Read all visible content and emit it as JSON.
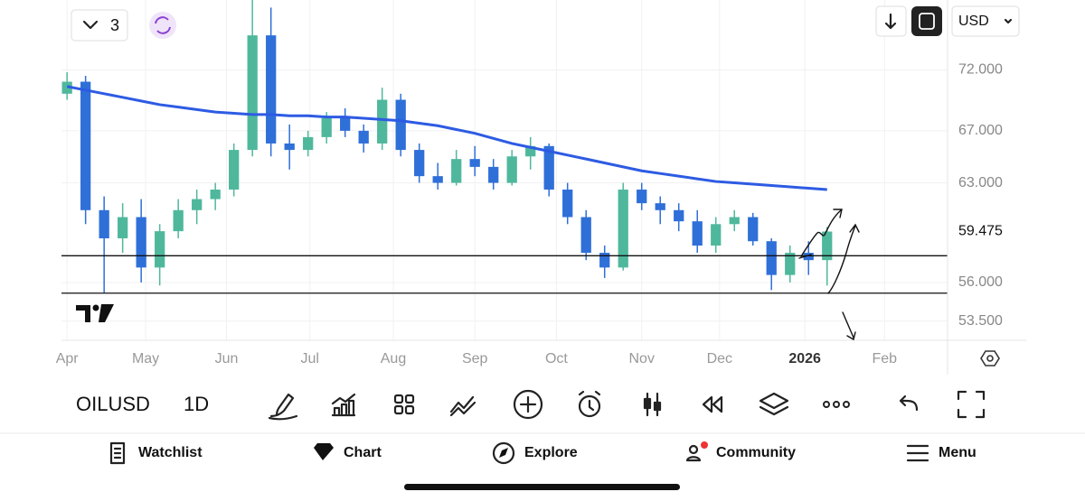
{
  "top_bar": {
    "layout_count": "3",
    "currency": "USD"
  },
  "chart_data": {
    "type": "candlestick",
    "x": [
      0,
      1,
      2,
      3,
      4,
      5,
      6,
      7,
      8,
      9,
      10,
      11,
      12,
      13,
      14,
      15,
      16,
      17,
      18,
      19,
      20,
      21,
      22,
      23,
      24,
      25,
      26,
      27,
      28,
      29,
      30,
      31,
      32,
      33,
      34,
      35,
      36,
      37,
      38,
      39,
      40,
      41
    ],
    "open": [
      70,
      71,
      61,
      59,
      60.5,
      57,
      59.5,
      61,
      61.8,
      62.5,
      65.5,
      75,
      66,
      65.5,
      66.5,
      68,
      67,
      66,
      69.5,
      65.5,
      63.5,
      63,
      64.8,
      64.2,
      63,
      65,
      65.8,
      62.5,
      60.5,
      58,
      57,
      62.5,
      61.5,
      61,
      60.2,
      58.5,
      60,
      60.5,
      58.8,
      56.5,
      58,
      57.5
    ],
    "high": [
      71.8,
      71.5,
      62,
      61.5,
      61.8,
      60,
      61.8,
      62.5,
      63,
      66,
      78.4,
      77.5,
      67.5,
      67,
      68.5,
      68.8,
      67.5,
      70.5,
      70,
      66,
      64.5,
      65.5,
      65.8,
      64.8,
      65.5,
      66.5,
      66,
      63,
      61,
      58.5,
      63,
      63,
      62,
      61.5,
      61,
      60.5,
      61,
      60.8,
      59,
      58.5,
      58.8,
      59.8
    ],
    "low": [
      69.5,
      60,
      55.3,
      58,
      56,
      55.8,
      59,
      60,
      61,
      62,
      65,
      65,
      64,
      65,
      66,
      66.5,
      65.3,
      65.5,
      65,
      63,
      62.5,
      62.8,
      63.5,
      62.5,
      62.8,
      64,
      62,
      60,
      57.5,
      56.3,
      56.8,
      61,
      60,
      59.5,
      58,
      58,
      59.5,
      58.5,
      55.5,
      56,
      56.5,
      55.8
    ],
    "close": [
      71,
      61,
      59,
      60.5,
      57,
      59.5,
      61,
      61.8,
      62.5,
      65.5,
      75,
      66,
      65.5,
      66.5,
      68,
      67,
      66,
      69.5,
      65.5,
      63.5,
      63,
      64.8,
      64.2,
      63,
      65,
      65.8,
      62.5,
      60.5,
      58,
      57,
      62.5,
      61.5,
      61,
      60.2,
      58.5,
      60,
      60.5,
      58.8,
      56.5,
      58,
      57.5,
      59.475
    ],
    "up_color": "#4fb89c",
    "down_color": "#2f6fd8",
    "moving_average": {
      "color": "#2d5be3",
      "values": [
        70.6,
        70.3,
        70.0,
        69.7,
        69.4,
        69.1,
        68.9,
        68.7,
        68.5,
        68.4,
        68.3,
        68.3,
        68.2,
        68.2,
        68.1,
        68.1,
        68.0,
        67.9,
        67.8,
        67.6,
        67.4,
        67.1,
        66.8,
        66.4,
        66.0,
        65.7,
        65.4,
        65.1,
        64.8,
        64.5,
        64.2,
        63.9,
        63.7,
        63.5,
        63.3,
        63.1,
        63.0,
        62.9,
        62.8,
        62.7,
        62.6,
        62.5
      ]
    },
    "horizontal_lines": [
      57.8,
      55.3
    ],
    "ylim": [
      52.3,
      78.2
    ],
    "log_scale": true,
    "yticks": [
      {
        "value": 72,
        "label": "72.000"
      },
      {
        "value": 67,
        "label": "67.000"
      },
      {
        "value": 63,
        "label": "63.000"
      },
      {
        "value": 56,
        "label": "56.000"
      },
      {
        "value": 53.5,
        "label": "53.500"
      }
    ],
    "xlim": [
      -0.3,
      47.5
    ],
    "xticks": [
      {
        "value": 0,
        "label": "Apr"
      },
      {
        "value": 4.24,
        "label": "May"
      },
      {
        "value": 8.6,
        "label": "Jun"
      },
      {
        "value": 13.1,
        "label": "Jul"
      },
      {
        "value": 17.6,
        "label": "Aug"
      },
      {
        "value": 22.0,
        "label": "Sep"
      },
      {
        "value": 26.4,
        "label": "Oct"
      },
      {
        "value": 31.0,
        "label": "Nov"
      },
      {
        "value": 35.2,
        "label": "Dec"
      },
      {
        "value": 39.8,
        "label": "2026"
      },
      {
        "value": 44.1,
        "label": "Feb"
      }
    ],
    "grid": true
  },
  "toolbar": {
    "symbol": "OILUSD",
    "interval": "1D"
  },
  "nav": {
    "items": [
      "Watchlist",
      "Chart",
      "Explore",
      "Community",
      "Menu"
    ]
  }
}
